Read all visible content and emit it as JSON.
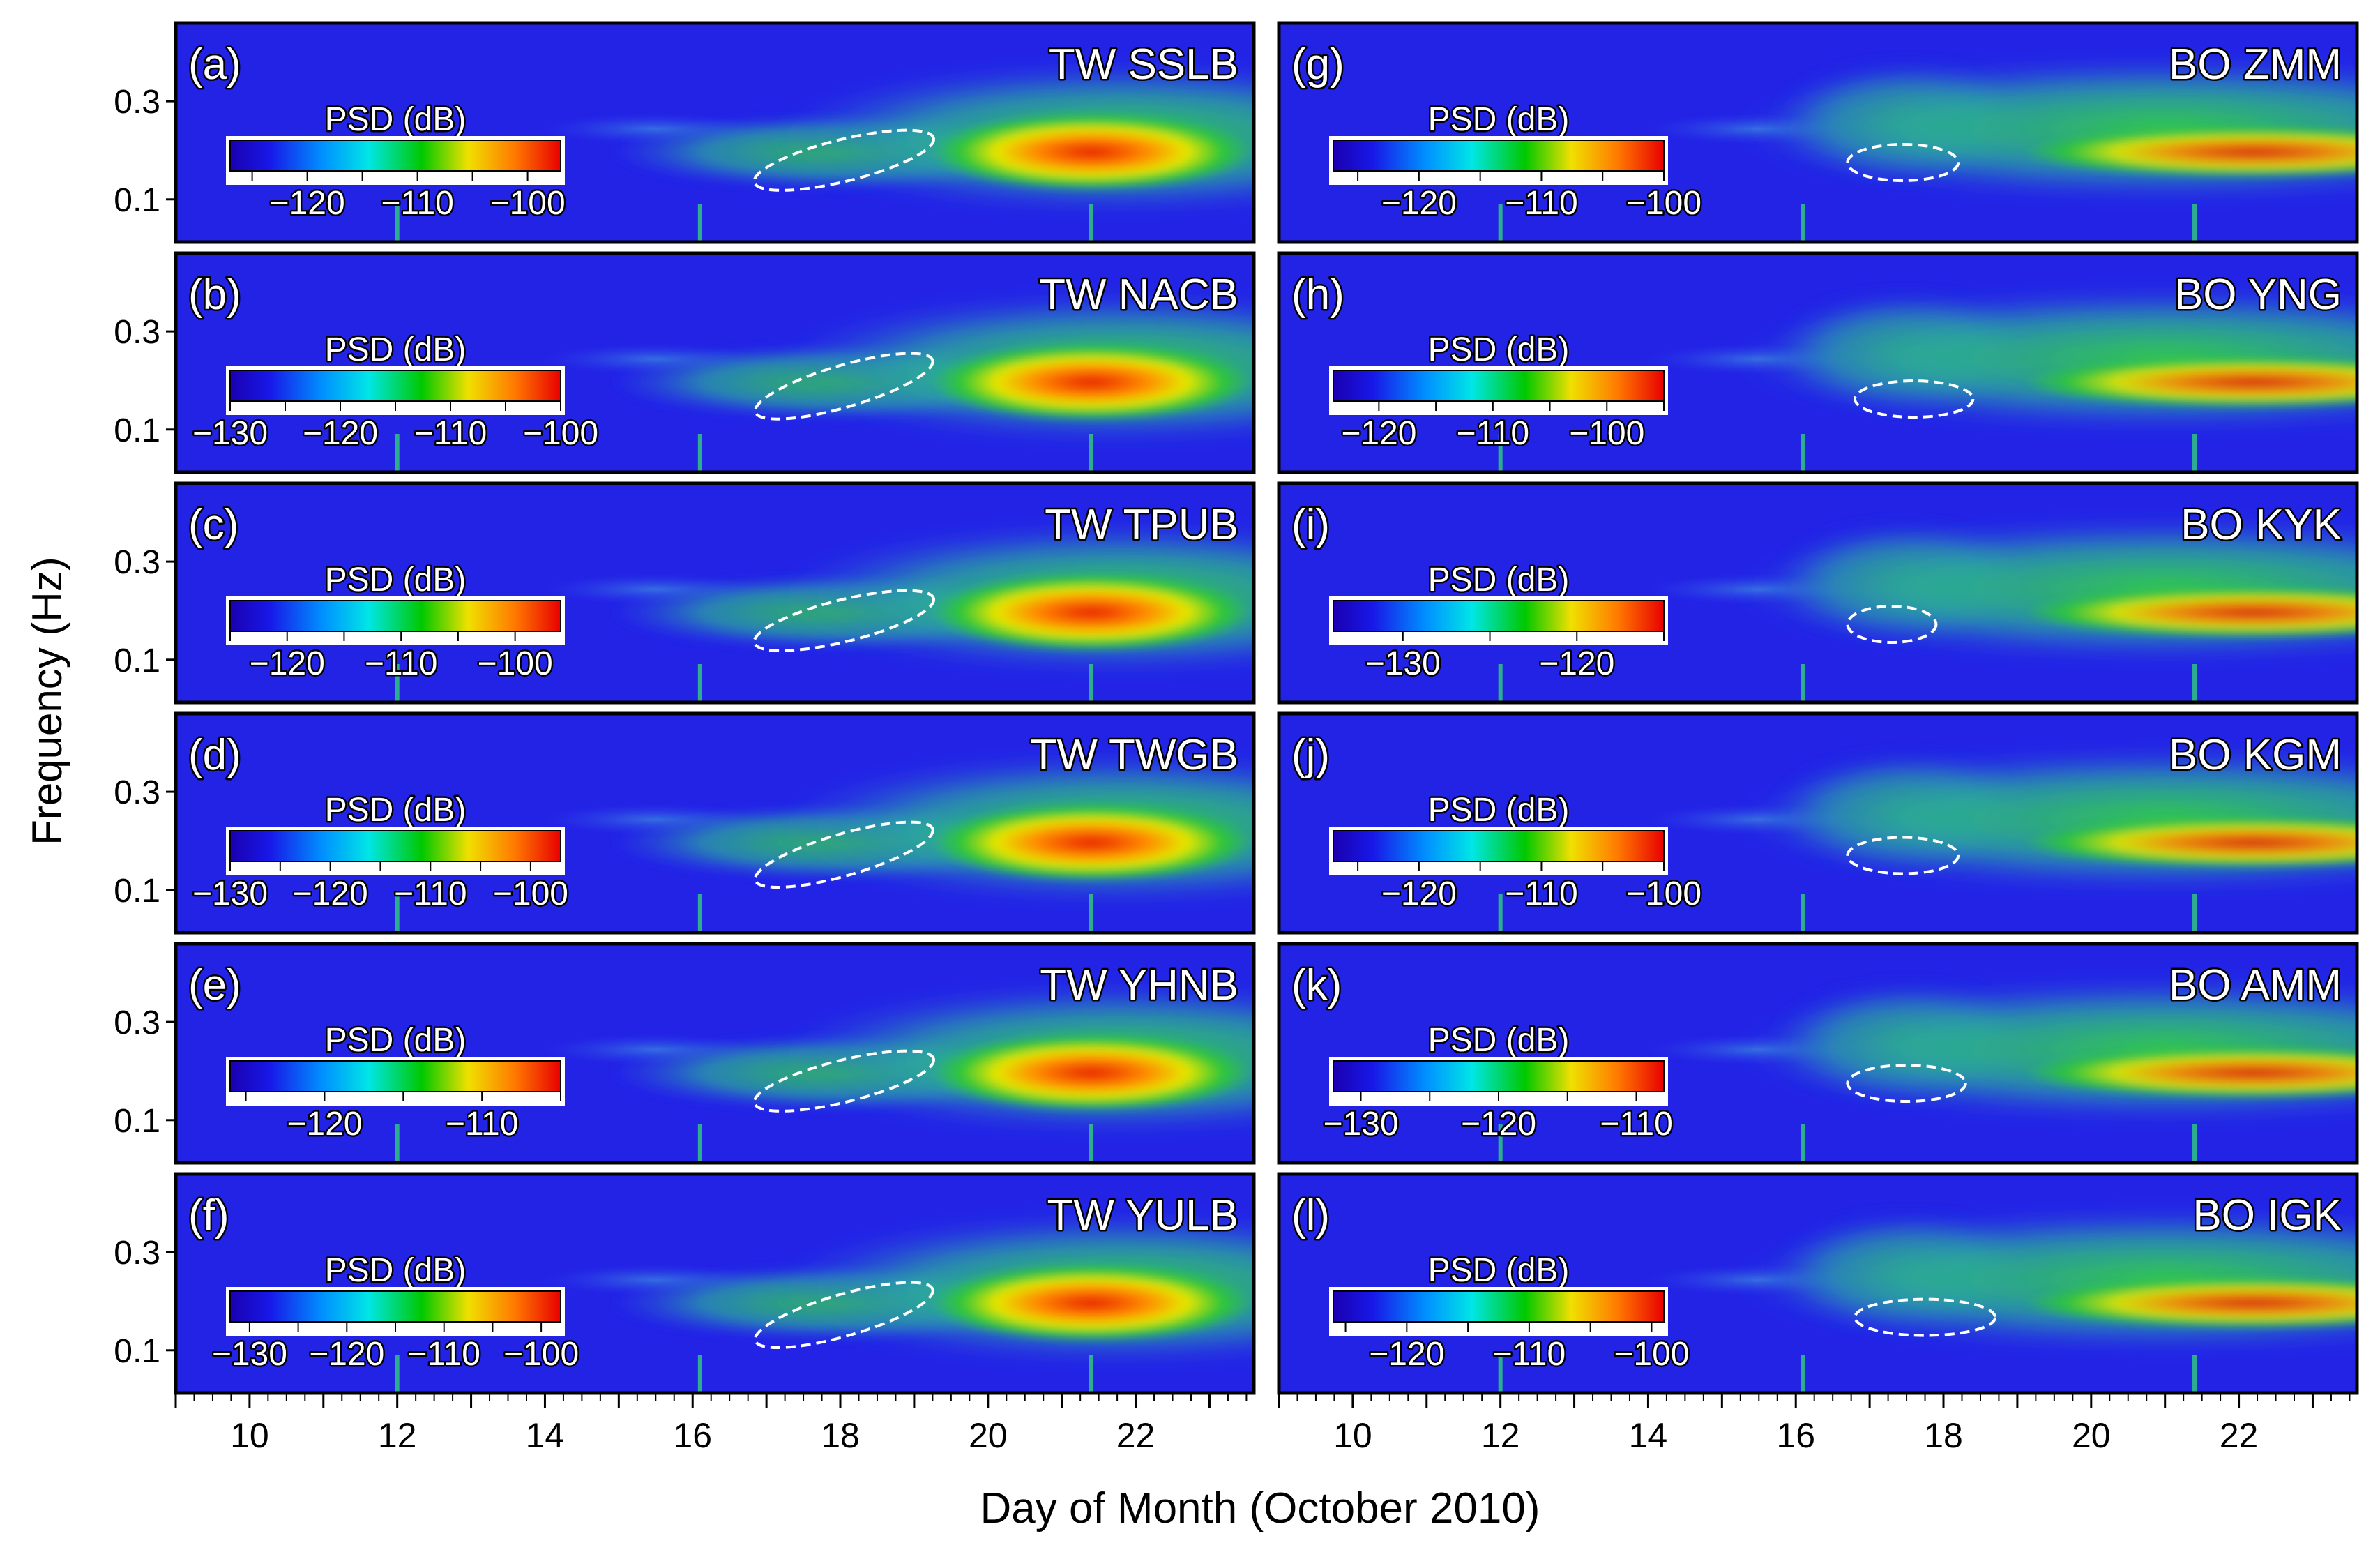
{
  "figure": {
    "ylabel": "Frequency (Hz)",
    "xlabel": "Day of Month (October 2010)",
    "colorbar_label": "PSD (dB)"
  },
  "colors": {
    "background": "#2323e6",
    "panel_border": "#000000",
    "ellipse": "#ffffff"
  },
  "chart_data": [
    {
      "type": "heatmap",
      "letter": "(a)",
      "station": "TW SSLB",
      "x": [
        10,
        12,
        14,
        16,
        18,
        20,
        22
      ],
      "yticks": [
        0.1,
        0.3
      ],
      "cb_ticks": [
        -120,
        -110,
        -100
      ],
      "cb_min": -127,
      "cb_max": -97,
      "ellipse_day": [
        16.8,
        19.3
      ],
      "ellipse_freq": [
        0.12,
        0.2
      ]
    },
    {
      "type": "heatmap",
      "letter": "(b)",
      "station": "TW NACB",
      "x": [
        10,
        12,
        14,
        16,
        18,
        20,
        22
      ],
      "yticks": [
        0.1,
        0.3
      ],
      "cb_ticks": [
        -130,
        -120,
        -110,
        -100
      ],
      "cb_min": -130,
      "cb_max": -100,
      "ellipse_day": [
        16.8,
        19.3
      ],
      "ellipse_freq": [
        0.12,
        0.22
      ]
    },
    {
      "type": "heatmap",
      "letter": "(c)",
      "station": "TW TPUB",
      "x": [
        10,
        12,
        14,
        16,
        18,
        20,
        22
      ],
      "yticks": [
        0.1,
        0.3
      ],
      "cb_ticks": [
        -120,
        -110,
        -100
      ],
      "cb_min": -125,
      "cb_max": -96,
      "ellipse_day": [
        16.8,
        19.3
      ],
      "ellipse_freq": [
        0.12,
        0.2
      ]
    },
    {
      "type": "heatmap",
      "letter": "(d)",
      "station": "TW TWGB",
      "x": [
        10,
        12,
        14,
        16,
        18,
        20,
        22
      ],
      "yticks": [
        0.1,
        0.3
      ],
      "cb_ticks": [
        -130,
        -120,
        -110,
        -100
      ],
      "cb_min": -130,
      "cb_max": -97,
      "ellipse_day": [
        16.8,
        19.3
      ],
      "ellipse_freq": [
        0.11,
        0.2
      ]
    },
    {
      "type": "heatmap",
      "letter": "(e)",
      "station": "TW YHNB",
      "x": [
        10,
        12,
        14,
        16,
        18,
        20,
        22
      ],
      "yticks": [
        0.1,
        0.3
      ],
      "cb_ticks": [
        -120,
        -110
      ],
      "cb_min": -126,
      "cb_max": -105,
      "ellipse_day": [
        16.8,
        19.3
      ],
      "ellipse_freq": [
        0.12,
        0.2
      ]
    },
    {
      "type": "heatmap",
      "letter": "(f)",
      "station": "TW YULB",
      "x": [
        10,
        12,
        14,
        16,
        18,
        20,
        22
      ],
      "yticks": [
        0.1,
        0.3
      ],
      "cb_ticks": [
        -130,
        -120,
        -110,
        -100
      ],
      "cb_min": -132,
      "cb_max": -98,
      "ellipse_day": [
        16.8,
        19.3
      ],
      "ellipse_freq": [
        0.11,
        0.2
      ]
    },
    {
      "type": "heatmap",
      "letter": "(g)",
      "station": "BO ZMM",
      "x": [
        10,
        12,
        14,
        16,
        18,
        20,
        22
      ],
      "yticks": [
        0.1,
        0.3
      ],
      "cb_ticks": [
        -120,
        -110,
        -100
      ],
      "cb_min": -127,
      "cb_max": -100,
      "ellipse_day": [
        16.7,
        18.2
      ],
      "ellipse_freq": [
        0.12,
        0.19
      ]
    },
    {
      "type": "heatmap",
      "letter": "(h)",
      "station": "BO YNG",
      "x": [
        10,
        12,
        14,
        16,
        18,
        20,
        22
      ],
      "yticks": [
        0.1,
        0.3
      ],
      "cb_ticks": [
        -120,
        -110,
        -100
      ],
      "cb_min": -124,
      "cb_max": -95,
      "ellipse_day": [
        16.8,
        18.4
      ],
      "ellipse_freq": [
        0.11,
        0.18
      ]
    },
    {
      "type": "heatmap",
      "letter": "(i)",
      "station": "BO KYK",
      "x": [
        10,
        12,
        14,
        16,
        18,
        20,
        22
      ],
      "yticks": [
        0.1,
        0.3
      ],
      "cb_ticks": [
        -130,
        -120
      ],
      "cb_min": -134,
      "cb_max": -115,
      "ellipse_day": [
        16.7,
        17.9
      ],
      "ellipse_freq": [
        0.13,
        0.17
      ]
    },
    {
      "type": "heatmap",
      "letter": "(j)",
      "station": "BO KGM",
      "x": [
        10,
        12,
        14,
        16,
        18,
        20,
        22
      ],
      "yticks": [
        0.1,
        0.3
      ],
      "cb_ticks": [
        -120,
        -110,
        -100
      ],
      "cb_min": -127,
      "cb_max": -100,
      "ellipse_day": [
        16.7,
        18.2
      ],
      "ellipse_freq": [
        0.12,
        0.18
      ]
    },
    {
      "type": "heatmap",
      "letter": "(k)",
      "station": "BO AMM",
      "x": [
        10,
        12,
        14,
        16,
        18,
        20,
        22
      ],
      "yticks": [
        0.1,
        0.3
      ],
      "cb_ticks": [
        -130,
        -120,
        -110
      ],
      "cb_min": -132,
      "cb_max": -108,
      "ellipse_day": [
        16.7,
        18.3
      ],
      "ellipse_freq": [
        0.12,
        0.19
      ]
    },
    {
      "type": "heatmap",
      "letter": "(l)",
      "station": "BO IGK",
      "x": [
        10,
        12,
        14,
        16,
        18,
        20,
        22
      ],
      "yticks": [
        0.1,
        0.3
      ],
      "cb_ticks": [
        -120,
        -110,
        -100
      ],
      "cb_min": -126,
      "cb_max": -99,
      "ellipse_day": [
        16.8,
        18.7
      ],
      "ellipse_freq": [
        0.11,
        0.19
      ]
    }
  ]
}
